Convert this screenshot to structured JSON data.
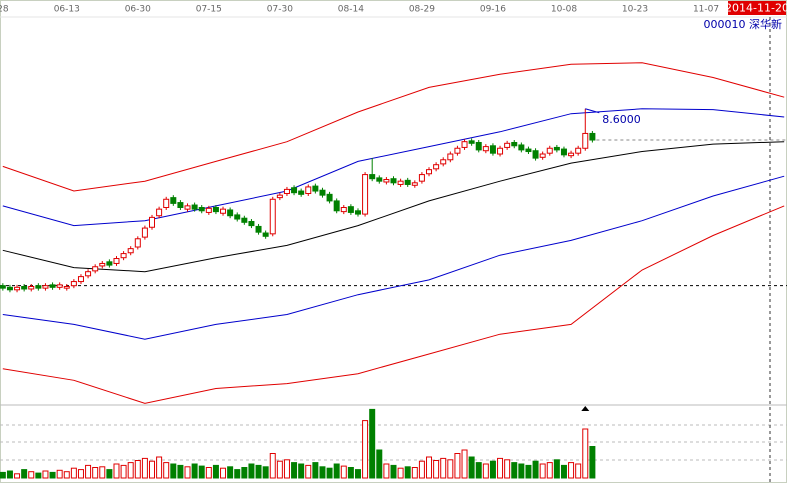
{
  "chart_data": {
    "type": "candlestick",
    "title": "000010 深华新",
    "date_label": "2014-11-20",
    "xlim": [
      -0.4,
      110.4
    ],
    "xticks": [
      {
        "value": 0,
        "label": "28"
      },
      {
        "value": 9,
        "label": "06-13"
      },
      {
        "value": 19,
        "label": "06-30"
      },
      {
        "value": 29,
        "label": "07-15"
      },
      {
        "value": 39,
        "label": "07-30"
      },
      {
        "value": 49,
        "label": "08-14"
      },
      {
        "value": 59,
        "label": "08-29"
      },
      {
        "value": 69,
        "label": "09-16"
      },
      {
        "value": 79,
        "label": "10-08"
      },
      {
        "value": 89,
        "label": "10-23"
      },
      {
        "value": 99,
        "label": "11-07"
      }
    ],
    "ylim": [
      5.0,
      9.8
    ],
    "up_color": "#e00000",
    "down_color": "#008000",
    "open": [
      6.45,
      6.43,
      6.4,
      6.44,
      6.41,
      6.45,
      6.42,
      6.46,
      6.43,
      6.42,
      6.45,
      6.5,
      6.57,
      6.63,
      6.69,
      6.74,
      6.72,
      6.79,
      6.85,
      6.92,
      7.04,
      7.16,
      7.3,
      7.4,
      7.52,
      7.46,
      7.38,
      7.43,
      7.4,
      7.34,
      7.4,
      7.33,
      7.37,
      7.31,
      7.27,
      7.23,
      7.17,
      7.09,
      7.08,
      7.52,
      7.57,
      7.64,
      7.6,
      7.57,
      7.66,
      7.61,
      7.56,
      7.48,
      7.35,
      7.41,
      7.36,
      7.32,
      7.8,
      7.76,
      7.71,
      7.75,
      7.68,
      7.73,
      7.67,
      7.72,
      7.81,
      7.87,
      7.93,
      7.98,
      8.06,
      8.13,
      8.21,
      8.19,
      8.09,
      8.15,
      8.05,
      8.13,
      8.19,
      8.16,
      8.11,
      8.09,
      8.01,
      8.06,
      8.13,
      8.11,
      8.03,
      8.06,
      8.12,
      8.3
    ],
    "high": [
      6.48,
      6.46,
      6.46,
      6.47,
      6.47,
      6.48,
      6.48,
      6.49,
      6.49,
      6.47,
      6.53,
      6.59,
      6.65,
      6.71,
      6.75,
      6.77,
      6.81,
      6.87,
      6.93,
      7.05,
      7.18,
      7.31,
      7.41,
      7.53,
      7.55,
      7.49,
      7.45,
      7.46,
      7.43,
      7.42,
      7.43,
      7.41,
      7.4,
      7.34,
      7.3,
      7.26,
      7.2,
      7.12,
      7.53,
      7.58,
      7.65,
      7.67,
      7.63,
      7.68,
      7.69,
      7.64,
      7.59,
      7.51,
      7.43,
      7.44,
      7.39,
      7.83,
      8.0,
      7.79,
      7.77,
      7.78,
      7.75,
      7.76,
      7.73,
      7.83,
      7.89,
      7.95,
      8.01,
      8.08,
      8.15,
      8.23,
      8.24,
      8.22,
      8.17,
      8.18,
      8.15,
      8.21,
      8.22,
      8.19,
      8.14,
      8.12,
      8.08,
      8.15,
      8.16,
      8.14,
      8.09,
      8.15,
      8.6,
      8.33
    ],
    "low": [
      6.39,
      6.37,
      6.37,
      6.38,
      6.38,
      6.39,
      6.39,
      6.4,
      6.4,
      6.39,
      6.42,
      6.47,
      6.54,
      6.6,
      6.66,
      6.67,
      6.69,
      6.76,
      6.82,
      6.89,
      7.01,
      7.13,
      7.27,
      7.37,
      7.42,
      7.37,
      7.35,
      7.35,
      7.33,
      7.31,
      7.32,
      7.3,
      7.27,
      7.23,
      7.19,
      7.15,
      7.07,
      7.02,
      7.05,
      7.49,
      7.54,
      7.55,
      7.53,
      7.54,
      7.57,
      7.52,
      7.45,
      7.33,
      7.32,
      7.31,
      7.29,
      7.29,
      7.72,
      7.69,
      7.68,
      7.67,
      7.65,
      7.65,
      7.64,
      7.69,
      7.78,
      7.84,
      7.9,
      7.95,
      8.03,
      8.1,
      8.15,
      8.07,
      8.06,
      8.03,
      8.02,
      8.1,
      8.12,
      8.07,
      8.05,
      7.97,
      7.98,
      8.03,
      8.07,
      8.01,
      8.0,
      8.03,
      8.09,
      8.19
    ],
    "close": [
      6.42,
      6.4,
      6.43,
      6.41,
      6.44,
      6.42,
      6.45,
      6.43,
      6.46,
      6.44,
      6.5,
      6.56,
      6.62,
      6.68,
      6.72,
      6.7,
      6.78,
      6.84,
      6.9,
      7.02,
      7.15,
      7.28,
      7.38,
      7.5,
      7.45,
      7.4,
      7.42,
      7.38,
      7.36,
      7.39,
      7.35,
      7.38,
      7.3,
      7.26,
      7.22,
      7.18,
      7.1,
      7.05,
      7.5,
      7.55,
      7.62,
      7.58,
      7.56,
      7.65,
      7.6,
      7.55,
      7.48,
      7.36,
      7.4,
      7.34,
      7.32,
      7.8,
      7.75,
      7.72,
      7.74,
      7.7,
      7.72,
      7.68,
      7.7,
      7.8,
      7.86,
      7.92,
      7.98,
      8.05,
      8.12,
      8.2,
      8.18,
      8.1,
      8.14,
      8.06,
      8.12,
      8.18,
      8.15,
      8.1,
      8.08,
      8.0,
      8.05,
      8.12,
      8.1,
      8.04,
      8.06,
      8.12,
      8.3,
      8.22
    ],
    "line_x": [
      0,
      10,
      20,
      30,
      40,
      50,
      60,
      70,
      80,
      90,
      100,
      110
    ],
    "lines": [
      {
        "color": "#e00000",
        "values": [
          7.9,
          7.6,
          7.72,
          7.96,
          8.2,
          8.56,
          8.86,
          9.02,
          9.14,
          9.16,
          8.98,
          8.74
        ]
      },
      {
        "color": "#0000cc",
        "values": [
          7.42,
          7.18,
          7.24,
          7.42,
          7.6,
          7.96,
          8.14,
          8.32,
          8.54,
          8.6,
          8.59,
          8.5
        ]
      },
      {
        "color": "#000000",
        "values": [
          6.88,
          6.67,
          6.62,
          6.79,
          6.94,
          7.18,
          7.48,
          7.72,
          7.94,
          8.08,
          8.17,
          8.2
        ]
      },
      {
        "color": "#0000cc",
        "values": [
          6.1,
          5.98,
          5.8,
          5.98,
          6.1,
          6.34,
          6.52,
          6.82,
          7.0,
          7.24,
          7.54,
          7.78
        ]
      },
      {
        "color": "#e00000",
        "values": [
          5.44,
          5.3,
          5.02,
          5.2,
          5.26,
          5.38,
          5.62,
          5.86,
          5.98,
          6.64,
          7.06,
          7.42
        ]
      }
    ],
    "hline": 6.45,
    "annotation": {
      "x": 82,
      "value": 8.6,
      "label": "8.6000"
    },
    "volume": {
      "ylim": [
        0,
        100
      ],
      "values": [
        8,
        10,
        6,
        12,
        9,
        7,
        10,
        8,
        11,
        9,
        14,
        12,
        18,
        15,
        16,
        12,
        20,
        18,
        22,
        25,
        28,
        24,
        30,
        22,
        20,
        18,
        16,
        20,
        17,
        15,
        18,
        14,
        16,
        12,
        15,
        20,
        18,
        16,
        35,
        24,
        26,
        22,
        20,
        18,
        22,
        16,
        14,
        20,
        17,
        15,
        12,
        82,
        98,
        40,
        20,
        18,
        14,
        16,
        15,
        24,
        30,
        25,
        28,
        26,
        35,
        40,
        30,
        22,
        20,
        24,
        28,
        26,
        22,
        20,
        18,
        24,
        20,
        22,
        26,
        18,
        22,
        20,
        70,
        45
      ]
    }
  }
}
